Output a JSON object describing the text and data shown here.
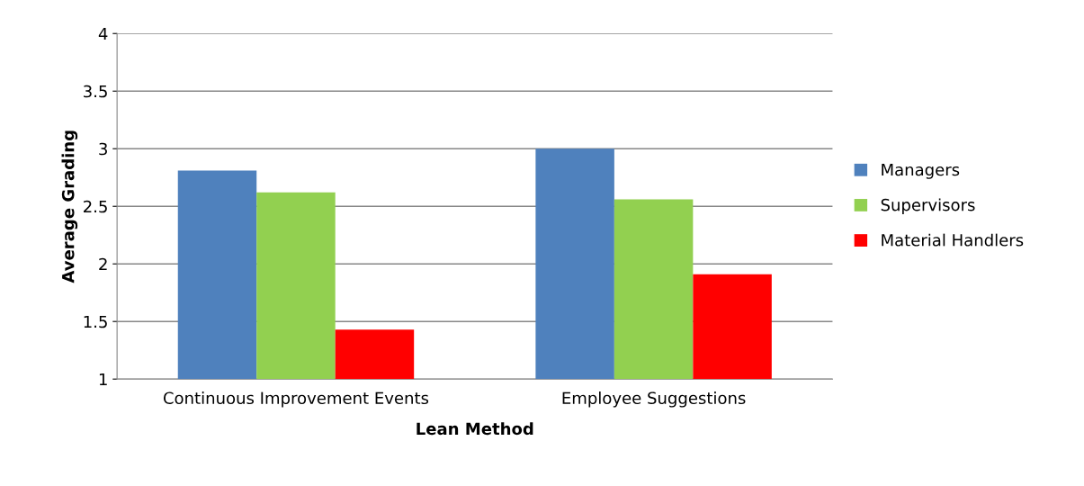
{
  "chart_data": {
    "type": "bar",
    "xlabel": "Lean Method",
    "ylabel": "Average Grading",
    "categories": [
      "Continuous Improvement Events",
      "Employee Suggestions"
    ],
    "series": [
      {
        "name": "Managers",
        "color": "#4f81bd",
        "values": [
          2.81,
          3.0
        ]
      },
      {
        "name": "Supervisors",
        "color": "#92d050",
        "values": [
          2.62,
          2.56
        ]
      },
      {
        "name": "Material Handlers",
        "color": "#ff0000",
        "values": [
          1.43,
          1.91
        ]
      }
    ],
    "ylim": [
      1,
      4
    ],
    "yticks": [
      1,
      1.5,
      2,
      2.5,
      3,
      3.5,
      4
    ],
    "grid": "y",
    "legend": "right"
  }
}
